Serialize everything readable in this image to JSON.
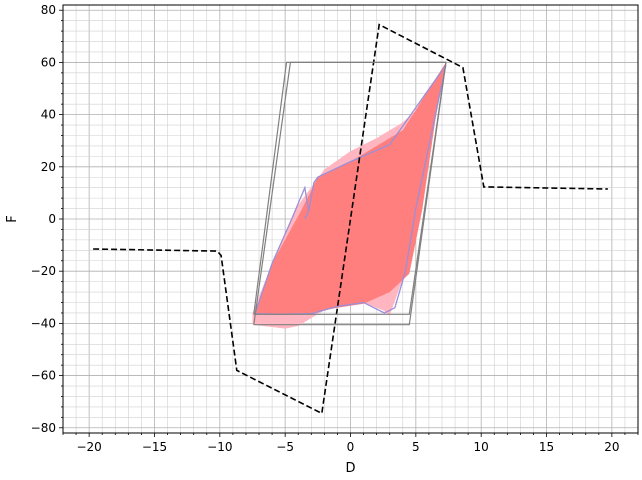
{
  "chart_data": {
    "type": "line",
    "title": "",
    "xlabel": "D",
    "ylabel": "F",
    "xlim": [
      -22,
      22
    ],
    "ylim": [
      -82,
      82
    ],
    "xticks": [
      -20,
      -15,
      -10,
      -5,
      0,
      5,
      10,
      15,
      20
    ],
    "yticks": [
      -80,
      -60,
      -40,
      -20,
      0,
      20,
      40,
      60,
      80
    ],
    "grid": true,
    "minor_grid": true,
    "series": [
      {
        "style": "dashed",
        "color": "#000000",
        "points": [
          [
            -19.7,
            -11.5
          ],
          [
            -10.2,
            -12.3
          ],
          [
            -9.9,
            -14
          ],
          [
            -8.7,
            -58
          ],
          [
            -2.2,
            -74.5
          ],
          [
            2.2,
            74.5
          ],
          [
            8.6,
            58
          ],
          [
            10.2,
            12.3
          ],
          [
            19.7,
            11.5
          ]
        ]
      },
      {
        "style": "solid",
        "color": "#808080",
        "points": [
          [
            -7.4,
            -36.5
          ],
          [
            -4.9,
            60
          ],
          [
            7.3,
            60
          ],
          [
            4.5,
            -36.5
          ],
          [
            -7.4,
            -36.5
          ]
        ]
      },
      {
        "style": "solid",
        "color": "#808080",
        "points": [
          [
            -7.4,
            -40.5
          ],
          [
            -4.6,
            60
          ],
          [
            7.3,
            60
          ],
          [
            4.5,
            -40.5
          ],
          [
            -7.4,
            -40.5
          ]
        ]
      }
    ],
    "bands": [
      {
        "color": "#ffb6c1",
        "upper": [
          [
            -7.5,
            -36
          ],
          [
            -6,
            -17
          ],
          [
            -4.2,
            4
          ],
          [
            -2,
            19
          ],
          [
            0,
            26
          ],
          [
            2,
            31
          ],
          [
            4,
            37
          ],
          [
            5.5,
            44
          ],
          [
            7.3,
            60
          ]
        ],
        "lower": [
          [
            7.3,
            60
          ],
          [
            6,
            28
          ],
          [
            5,
            4
          ],
          [
            4.2,
            -20
          ],
          [
            3,
            -37
          ],
          [
            2.5,
            -35
          ],
          [
            0,
            -30
          ],
          [
            -2,
            -35
          ],
          [
            -4,
            -41
          ],
          [
            -5,
            -42
          ],
          [
            -7.5,
            -40.5
          ]
        ]
      },
      {
        "color": "#ff7f7f",
        "upper": [
          [
            -7.3,
            -36
          ],
          [
            -6,
            -17
          ],
          [
            -3.8,
            3
          ],
          [
            -2.5,
            16
          ],
          [
            0,
            22
          ],
          [
            3,
            31
          ],
          [
            4,
            34
          ],
          [
            7.3,
            60
          ]
        ],
        "lower": [
          [
            7.3,
            60
          ],
          [
            6.5,
            38
          ],
          [
            5.5,
            4
          ],
          [
            4.5,
            -21
          ],
          [
            3,
            -28
          ],
          [
            1,
            -32.5
          ],
          [
            -1,
            -34
          ],
          [
            -3,
            -36
          ],
          [
            -5.5,
            -36.5
          ],
          [
            -7.3,
            -36.5
          ]
        ]
      }
    ],
    "envelope": {
      "color": "#9a8fd8",
      "points": [
        [
          -3.5,
          0
        ],
        [
          -3.2,
          3
        ],
        [
          -2.8,
          14
        ],
        [
          -2.5,
          16
        ],
        [
          0,
          22
        ],
        [
          3,
          28.5
        ],
        [
          7.3,
          59
        ],
        [
          6,
          28
        ],
        [
          5,
          4
        ],
        [
          4.2,
          -20
        ],
        [
          3.4,
          -34
        ],
        [
          2.6,
          -36
        ],
        [
          1,
          -32
        ],
        [
          -1,
          -33.5
        ],
        [
          -3,
          -36.3
        ],
        [
          -5.5,
          -36.5
        ],
        [
          -7.3,
          -36.3
        ],
        [
          -6,
          -17
        ],
        [
          -4.5,
          0
        ],
        [
          -3.5,
          12
        ],
        [
          -3.2,
          3
        ],
        [
          -3.5,
          0
        ]
      ]
    }
  }
}
